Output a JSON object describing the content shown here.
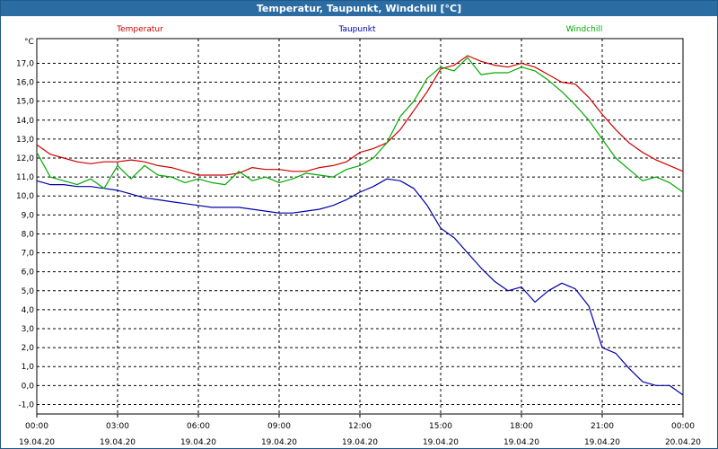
{
  "window": {
    "title": "Temperatur, Taupunkt, Windchill [°C]"
  },
  "chart_data": {
    "type": "line",
    "title": "Temperatur, Taupunkt, Windchill [°C]",
    "ylabel": "°C",
    "ylim": [
      -1.5,
      18.3
    ],
    "xlim": [
      0,
      24
    ],
    "grid": true,
    "y_ticks": [
      "-1,0",
      "0,0",
      "1,0",
      "2,0",
      "3,0",
      "4,0",
      "5,0",
      "6,0",
      "7,0",
      "8,0",
      "9,0",
      "10,0",
      "11,0",
      "12,0",
      "13,0",
      "14,0",
      "15,0",
      "16,0",
      "17,0"
    ],
    "y_tick_values": [
      -1,
      0,
      1,
      2,
      3,
      4,
      5,
      6,
      7,
      8,
      9,
      10,
      11,
      12,
      13,
      14,
      15,
      16,
      17
    ],
    "x_ticks": [
      {
        "time": "00:00",
        "date": "19.04.20"
      },
      {
        "time": "03:00",
        "date": "19.04.20"
      },
      {
        "time": "06:00",
        "date": "19.04.20"
      },
      {
        "time": "09:00",
        "date": "19.04.20"
      },
      {
        "time": "12:00",
        "date": "19.04.20"
      },
      {
        "time": "15:00",
        "date": "19.04.20"
      },
      {
        "time": "18:00",
        "date": "19.04.20"
      },
      {
        "time": "21:00",
        "date": "19.04.20"
      },
      {
        "time": "00:00",
        "date": "20.04.20"
      }
    ],
    "legend": [
      {
        "name": "Temperatur",
        "color": "#cc0000"
      },
      {
        "name": "Taupunkt",
        "color": "#0000aa"
      },
      {
        "name": "Windchill",
        "color": "#00aa00"
      }
    ],
    "series": [
      {
        "name": "Temperatur",
        "color": "#cc0000",
        "x": [
          0,
          0.5,
          1,
          1.5,
          2,
          2.5,
          3,
          3.5,
          4,
          4.5,
          5,
          5.5,
          6,
          6.5,
          7,
          7.5,
          8,
          8.5,
          9,
          9.5,
          10,
          10.5,
          11,
          11.5,
          12,
          12.5,
          13,
          13.5,
          14,
          14.5,
          15,
          15.5,
          16,
          16.5,
          17,
          17.5,
          18,
          18.5,
          19,
          19.5,
          20,
          20.5,
          21,
          21.5,
          22,
          22.5,
          23,
          23.5,
          24
        ],
        "values": [
          12.7,
          12.2,
          12.0,
          11.8,
          11.7,
          11.8,
          11.8,
          11.9,
          11.8,
          11.6,
          11.5,
          11.3,
          11.1,
          11.1,
          11.1,
          11.2,
          11.5,
          11.4,
          11.4,
          11.3,
          11.3,
          11.5,
          11.6,
          11.8,
          12.3,
          12.5,
          12.8,
          13.5,
          14.5,
          15.5,
          16.7,
          16.9,
          17.4,
          17.1,
          16.9,
          16.8,
          17.0,
          16.8,
          16.4,
          16.0,
          15.9,
          15.2,
          14.3,
          13.5,
          12.8,
          12.3,
          11.9,
          11.6,
          11.3
        ]
      },
      {
        "name": "Taupunkt",
        "color": "#0000aa",
        "x": [
          0,
          0.5,
          1,
          1.5,
          2,
          2.5,
          3,
          3.5,
          4,
          4.5,
          5,
          5.5,
          6,
          6.5,
          7,
          7.5,
          8,
          8.5,
          9,
          9.5,
          10,
          10.5,
          11,
          11.5,
          12,
          12.5,
          13,
          13.5,
          14,
          14.5,
          15,
          15.5,
          16,
          16.5,
          17,
          17.5,
          18,
          18.5,
          19,
          19.5,
          20,
          20.5,
          21,
          21.5,
          22,
          22.5,
          23,
          23.5,
          24
        ],
        "values": [
          10.8,
          10.6,
          10.6,
          10.5,
          10.5,
          10.4,
          10.3,
          10.1,
          9.9,
          9.8,
          9.7,
          9.6,
          9.5,
          9.4,
          9.4,
          9.4,
          9.3,
          9.2,
          9.1,
          9.1,
          9.2,
          9.3,
          9.5,
          9.8,
          10.2,
          10.5,
          10.9,
          10.8,
          10.4,
          9.5,
          8.3,
          7.8,
          7.0,
          6.2,
          5.5,
          5.0,
          5.2,
          4.4,
          5.0,
          5.4,
          5.1,
          4.2,
          2.0,
          1.7,
          0.9,
          0.2,
          0.0,
          0.0,
          -0.5
        ]
      },
      {
        "name": "Windchill",
        "color": "#00aa00",
        "x": [
          0,
          0.5,
          1,
          1.5,
          2,
          2.5,
          3,
          3.5,
          4,
          4.5,
          5,
          5.5,
          6,
          6.5,
          7,
          7.5,
          8,
          8.5,
          9,
          9.5,
          10,
          10.5,
          11,
          11.5,
          12,
          12.5,
          13,
          13.5,
          14,
          14.5,
          15,
          15.5,
          16,
          16.5,
          17,
          17.5,
          18,
          18.5,
          19,
          19.5,
          20,
          20.5,
          21,
          21.5,
          22,
          22.5,
          23,
          23.5,
          24
        ],
        "values": [
          12.3,
          11.0,
          10.8,
          10.6,
          10.9,
          10.4,
          11.6,
          10.9,
          11.6,
          11.1,
          11.0,
          10.7,
          10.9,
          10.7,
          10.6,
          11.3,
          10.8,
          11.0,
          10.7,
          10.9,
          11.2,
          11.1,
          11.0,
          11.4,
          11.6,
          12.0,
          12.8,
          14.2,
          15.0,
          16.2,
          16.8,
          16.6,
          17.3,
          16.4,
          16.5,
          16.5,
          16.8,
          16.6,
          16.1,
          15.5,
          14.8,
          14.0,
          13.0,
          12.0,
          11.4,
          10.8,
          11.0,
          10.7,
          10.2
        ]
      }
    ]
  }
}
